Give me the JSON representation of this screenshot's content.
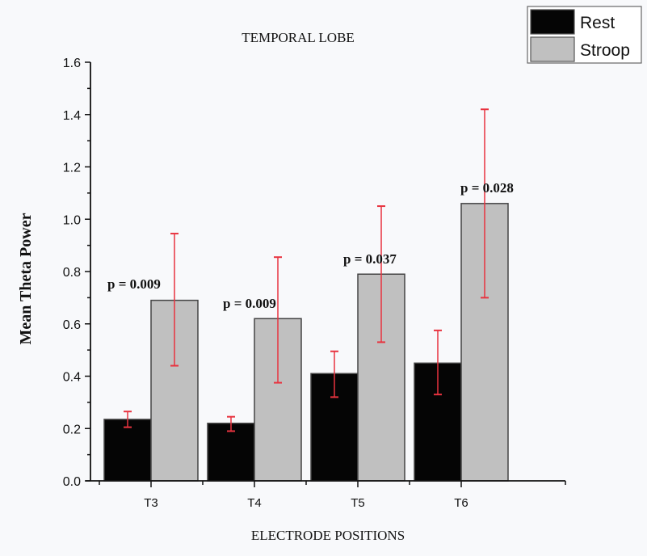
{
  "chart_data": {
    "type": "bar",
    "title": "TEMPORAL LOBE",
    "xlabel": "ELECTRODE POSITIONS",
    "ylabel": "Mean  Theta Power",
    "ylim": [
      0,
      1.6
    ],
    "yticks": [
      "0.0",
      "0.2",
      "0.4",
      "0.6",
      "0.8",
      "1.0",
      "1.2",
      "1.4",
      "1.6"
    ],
    "ytick_values": [
      0,
      0.2,
      0.4,
      0.6,
      0.8,
      1.0,
      1.2,
      1.4,
      1.6
    ],
    "categories": [
      "T3",
      "T4",
      "T5",
      "T6"
    ],
    "legend_position": "top-right",
    "series": [
      {
        "name": "Rest",
        "color": "#050505",
        "values": [
          0.235,
          0.22,
          0.41,
          0.45
        ],
        "error_low": [
          0.205,
          0.19,
          0.32,
          0.33
        ],
        "error_high": [
          0.265,
          0.245,
          0.495,
          0.575
        ]
      },
      {
        "name": "Stroop",
        "color": "#c0c0c0",
        "values": [
          0.69,
          0.62,
          0.79,
          1.06
        ],
        "error_low": [
          0.44,
          0.375,
          0.53,
          0.7
        ],
        "error_high": [
          0.945,
          0.855,
          1.05,
          1.42
        ]
      }
    ],
    "error_bar_color": "#e8333f",
    "annotations": [
      "p = 0.009",
      "p = 0.009",
      "p = 0.037",
      "p = 0.028"
    ],
    "grid": false
  }
}
